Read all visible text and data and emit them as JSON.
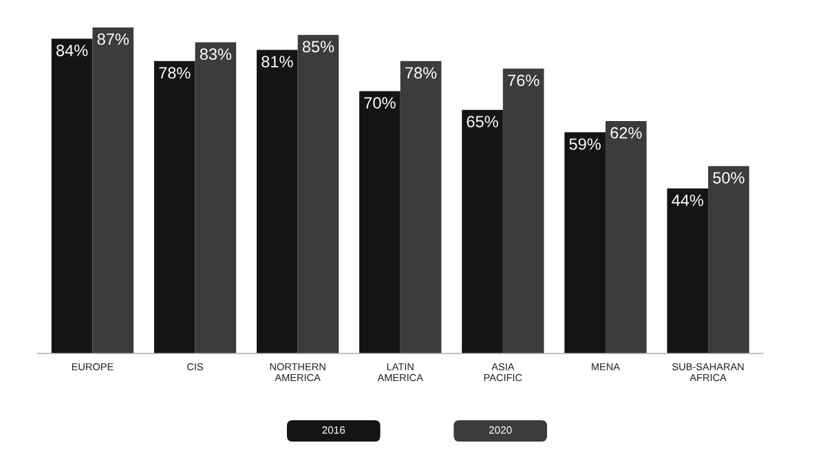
{
  "chart_data": {
    "type": "bar",
    "categories": [
      "EUROPE",
      "CIS",
      "NORTHERN\nAMERICA",
      "LATIN\nAMERICA",
      "ASIA\nPACIFIC",
      "MENA",
      "SUB-SAHARAN\nAFRICA"
    ],
    "series": [
      {
        "name": "2016",
        "color": "#141414",
        "values": [
          84,
          78,
          81,
          70,
          65,
          59,
          44
        ],
        "value_labels": [
          "84%",
          "78%",
          "81%",
          "70%",
          "65%",
          "59%",
          "44%"
        ]
      },
      {
        "name": "2020",
        "color": "#3c3c3c",
        "values": [
          87,
          83,
          85,
          78,
          76,
          62,
          50
        ],
        "value_labels": [
          "87%",
          "83%",
          "85%",
          "78%",
          "76%",
          "62%",
          "50%"
        ]
      }
    ],
    "legend": "bottom",
    "grid": false
  }
}
